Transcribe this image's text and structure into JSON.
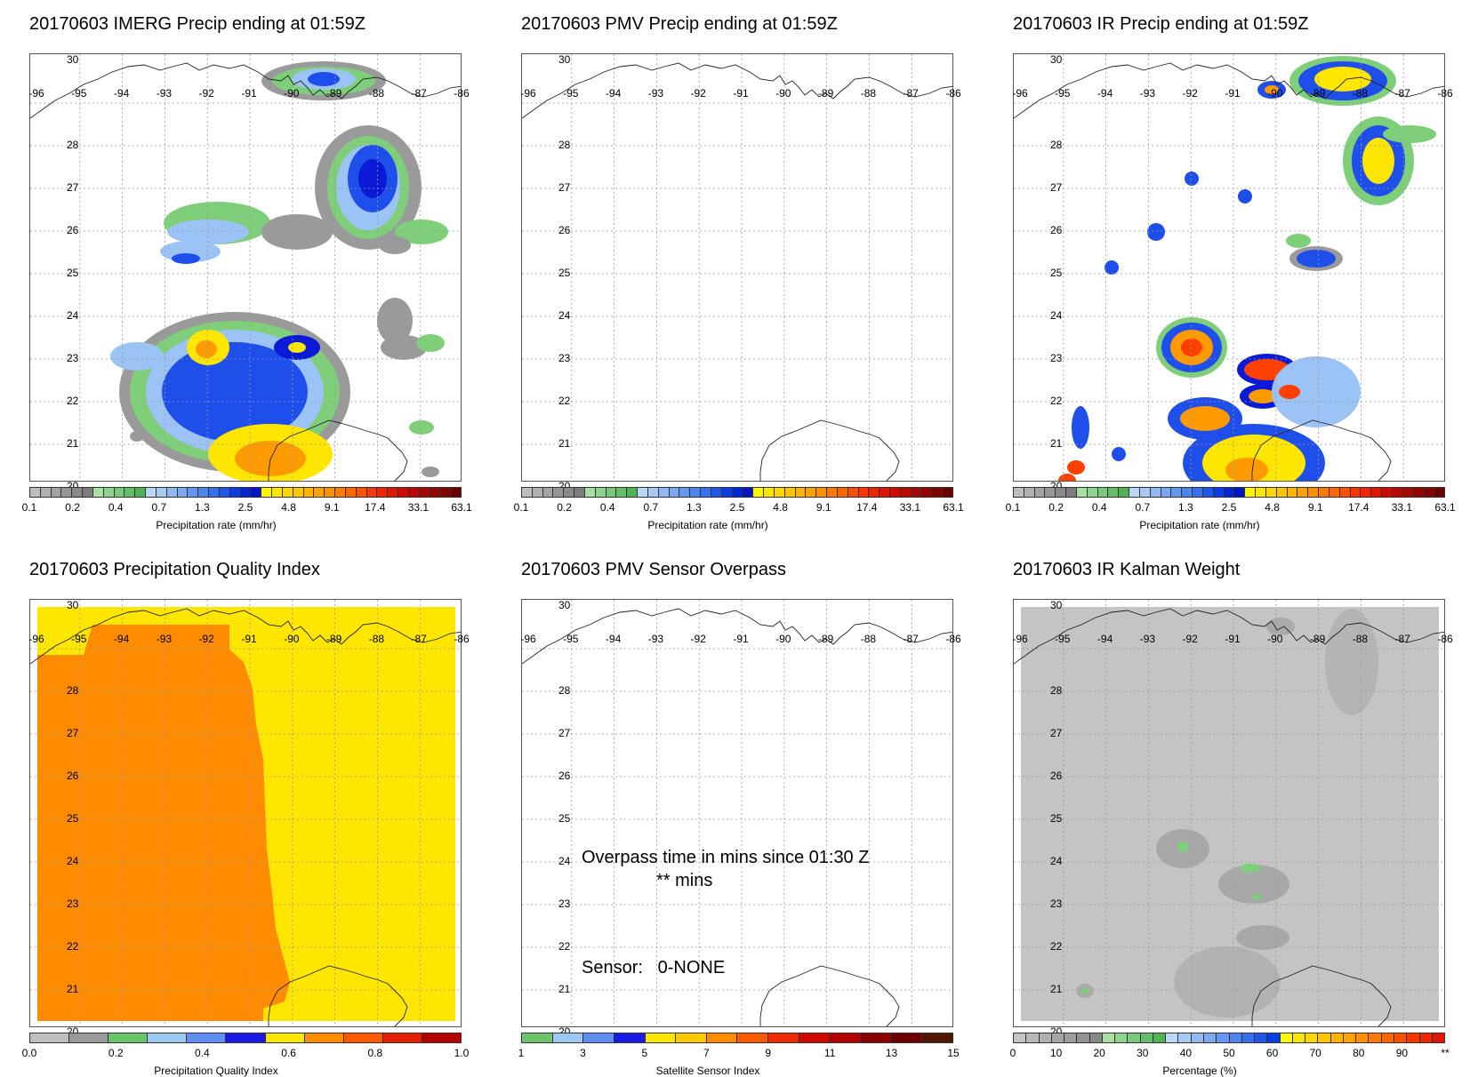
{
  "panels": [
    {
      "title": "20170603 IMERG Precip ending at 01:59Z",
      "kind": "precip-imerg"
    },
    {
      "title": "20170603 PMV Precip ending at 01:59Z",
      "kind": "precip-empty"
    },
    {
      "title": "20170603 IR Precip ending at 01:59Z",
      "kind": "precip-ir"
    },
    {
      "title": "20170603 Precipitation Quality Index",
      "kind": "quality"
    },
    {
      "title": "20170603 PMV Sensor Overpass",
      "kind": "overpass"
    },
    {
      "title": "20170603 IR Kalman Weight",
      "kind": "kalman"
    }
  ],
  "lat_labels": [
    "30",
    "28",
    "27",
    "26",
    "25",
    "24",
    "23",
    "22",
    "21",
    "20"
  ],
  "lon_labels": [
    "-96",
    "-95",
    "-94",
    "-93",
    "-92",
    "-91",
    "-90",
    "-89",
    "-88",
    "-87",
    "-86"
  ],
  "colorbars": {
    "precip": {
      "title": "Precipitation rate (mm/hr)",
      "ticks": [
        "0.1",
        "0.2",
        "0.4",
        "0.7",
        "1.3",
        "2.5",
        "4.8",
        "9.1",
        "17.4",
        "33.1",
        "63.1"
      ],
      "colors": [
        "#bdbdbd",
        "#b0b0b0",
        "#a3a3a3",
        "#969696",
        "#898989",
        "#7c7c7c",
        "#a7e0a0",
        "#8fd48c",
        "#78c979",
        "#64be67",
        "#4fb255",
        "#bcd7f5",
        "#a7c9f4",
        "#90b9f3",
        "#7aa9f2",
        "#6397f1",
        "#4d85ef",
        "#3570ee",
        "#1e57ea",
        "#0a3de6",
        "#0026d9",
        "#0015c4",
        "#fff600",
        "#ffe600",
        "#ffd600",
        "#ffc600",
        "#ffb500",
        "#ffa200",
        "#ff8f00",
        "#ff7b00",
        "#ff6600",
        "#ff5000",
        "#f83800",
        "#ee2400",
        "#e11400",
        "#d00a00",
        "#bc0800",
        "#a80600",
        "#950400",
        "#820200",
        "#6e0000"
      ]
    },
    "quality": {
      "title": "Precipitation Quality Index",
      "ticks": [
        "0.0",
        "0.2",
        "0.4",
        "0.6",
        "0.8",
        "1.0"
      ],
      "colors": [
        "#bebebe",
        "#9a9a9a",
        "#6cc56a",
        "#9ccaf5",
        "#5d8ef2",
        "#1a1ae6",
        "#ffe600",
        "#ff8c00",
        "#ff5a00",
        "#e61e00",
        "#b40000"
      ]
    },
    "sensor": {
      "title": "Satellite Sensor Index",
      "ticks": [
        "1",
        "3",
        "5",
        "7",
        "9",
        "11",
        "13",
        "15"
      ],
      "colors": [
        "#6cc56a",
        "#9ccaf5",
        "#5d8ef2",
        "#1a1ae6",
        "#ffe600",
        "#ffc800",
        "#ff8c00",
        "#ff5a00",
        "#f02800",
        "#d00a00",
        "#b40000",
        "#8c0000",
        "#6e0000",
        "#501400"
      ]
    },
    "kalman": {
      "title": "Percentage (%)",
      "ticks": [
        "0",
        "10",
        "20",
        "30",
        "40",
        "50",
        "60",
        "70",
        "80",
        "90",
        "**"
      ],
      "colors": [
        "#c4c4c4",
        "#bababa",
        "#b0b0b0",
        "#a6a6a6",
        "#9c9c9c",
        "#929292",
        "#888888",
        "#a7e0a0",
        "#8fd48c",
        "#78c979",
        "#64be67",
        "#4fb255",
        "#bcd7f5",
        "#a7c9f4",
        "#90b9f3",
        "#7aa9f2",
        "#6397f1",
        "#4d85ef",
        "#3570ee",
        "#1e57ea",
        "#0a3de6",
        "#fff600",
        "#ffe600",
        "#ffd600",
        "#ffc600",
        "#ffb500",
        "#ffa200",
        "#ff8f00",
        "#ff7b00",
        "#ff6600",
        "#ff5000",
        "#f83800",
        "#ee2400",
        "#e11400"
      ]
    }
  },
  "overpass": {
    "line1": "Overpass time in mins since 01:30 Z",
    "line2": "** mins",
    "sensor_line": "Sensor:   0-NONE"
  }
}
